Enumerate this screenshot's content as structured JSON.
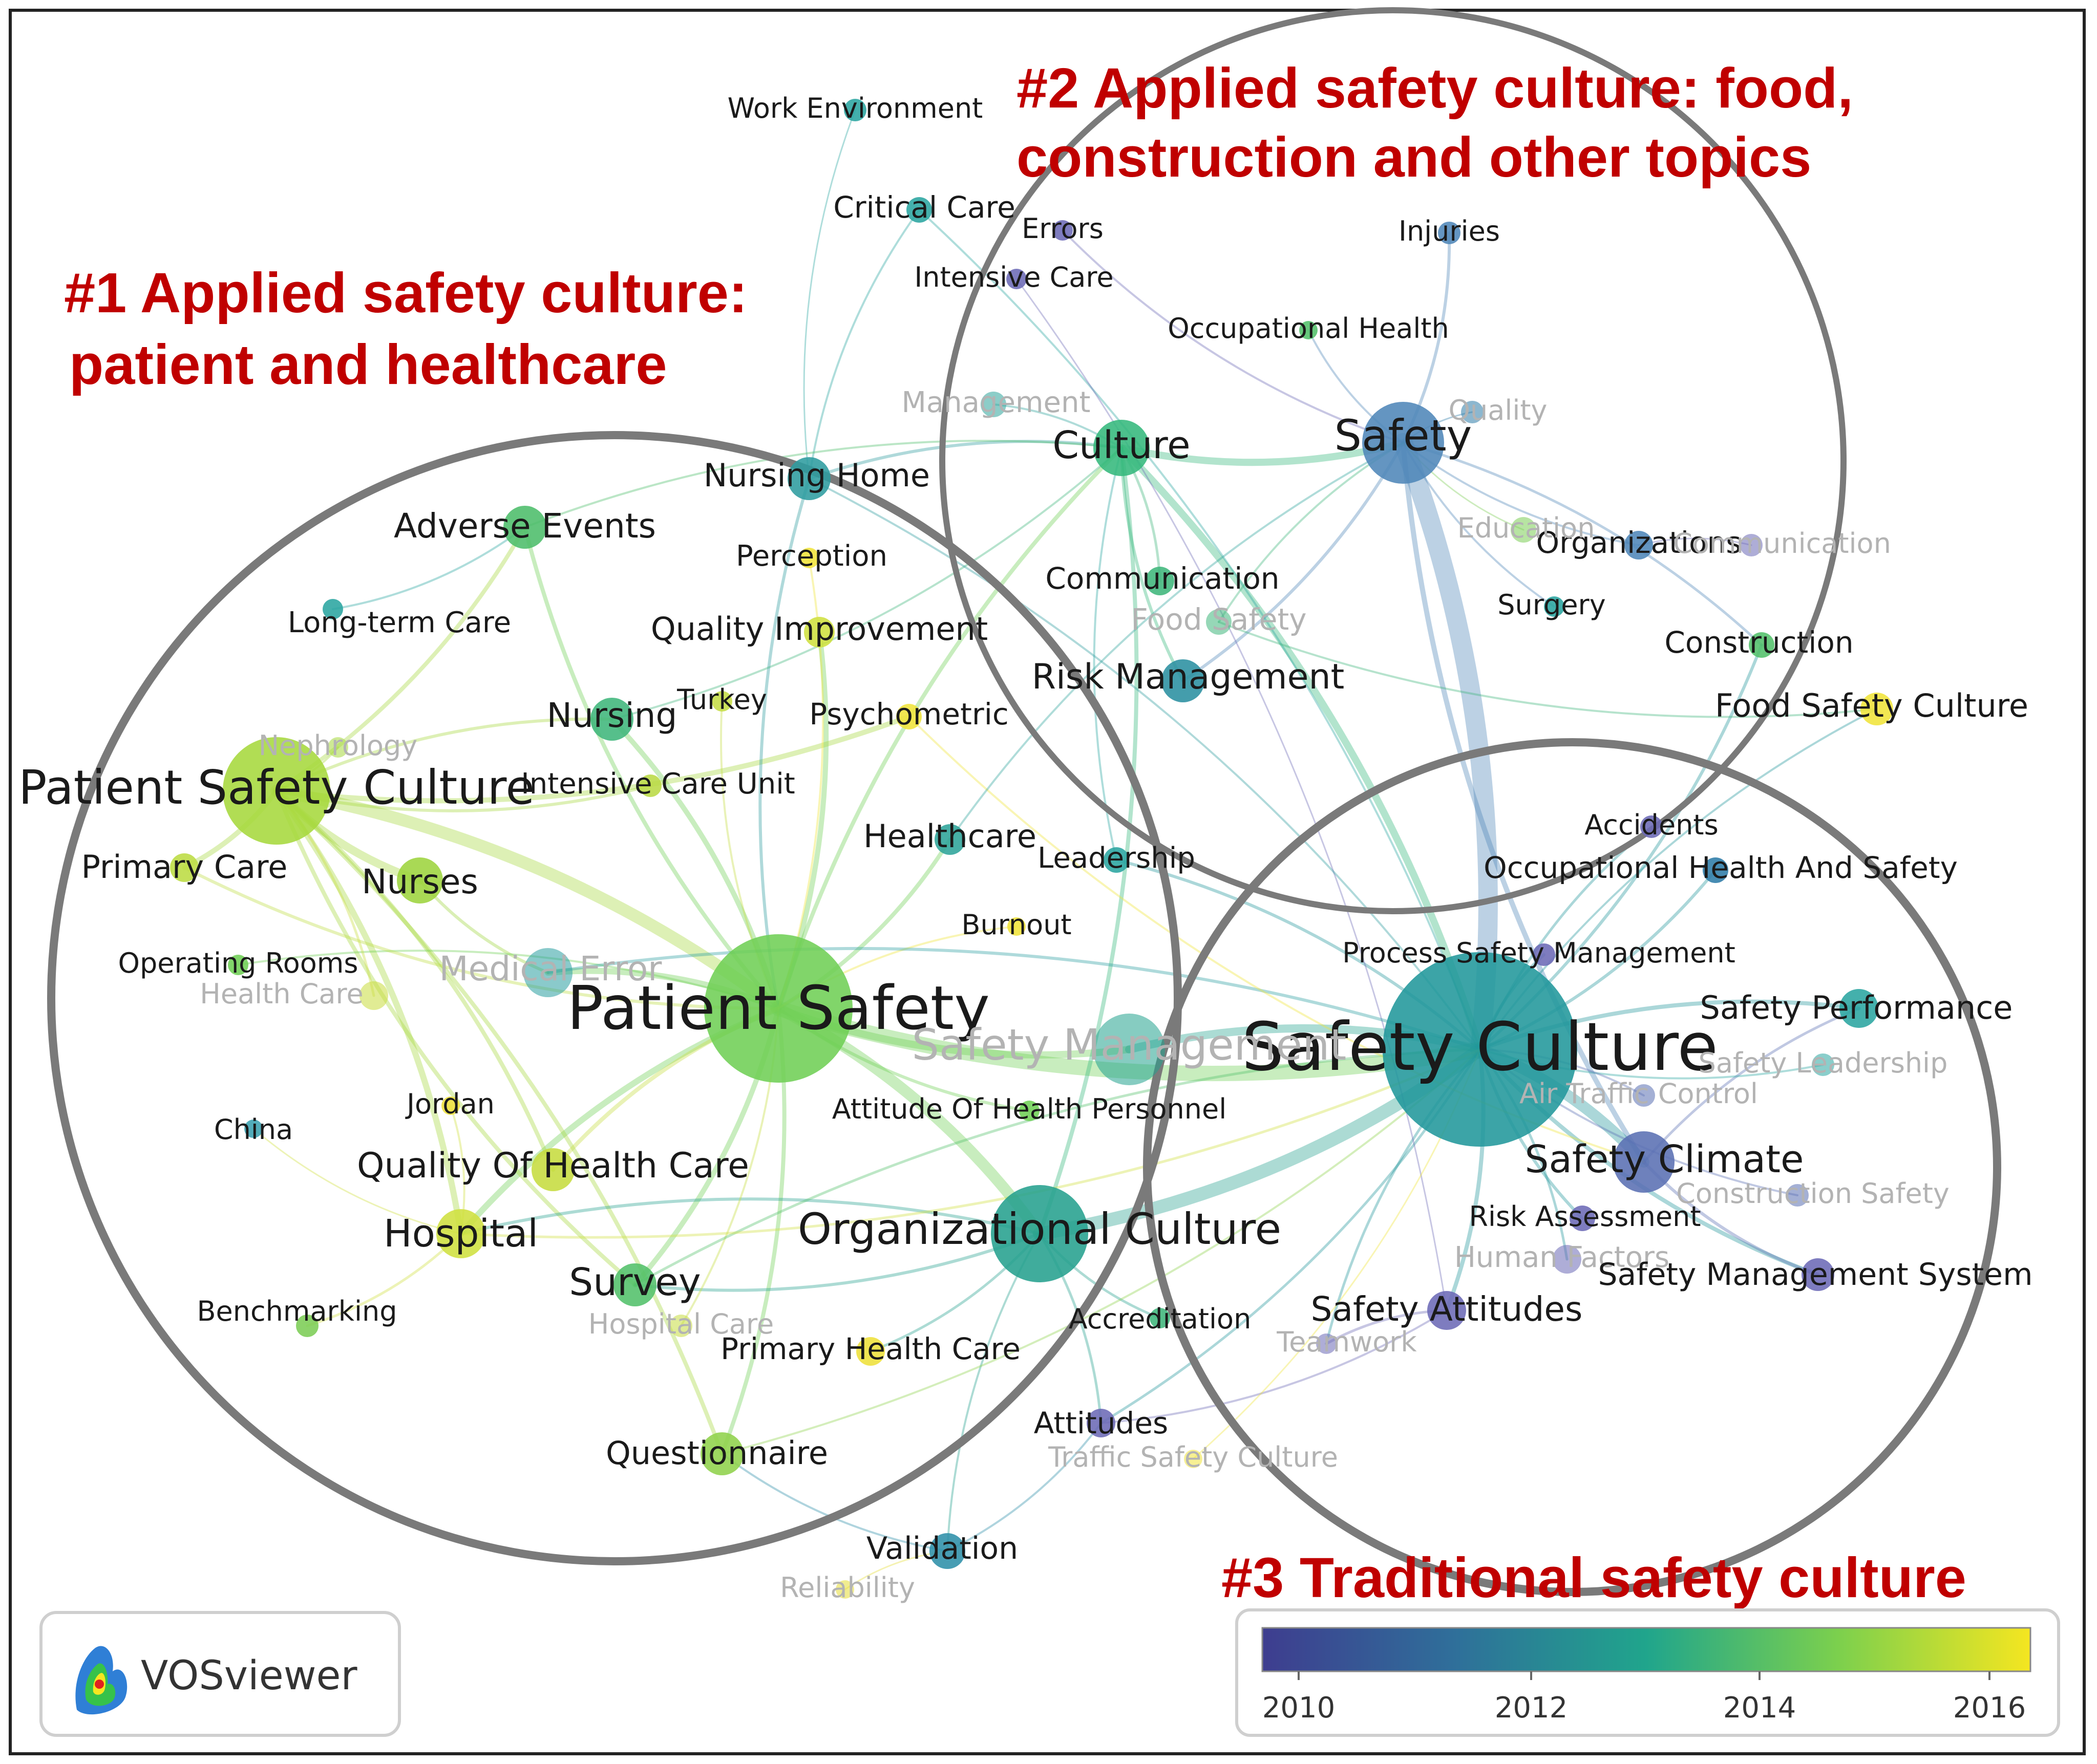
{
  "clusters": [
    {
      "id": "c1",
      "title_lines": [
        "#1 Applied safety culture:",
        "patient and healthcare"
      ]
    },
    {
      "id": "c2",
      "title_lines": [
        "#2 Applied safety culture: food,",
        "construction and other topics"
      ]
    },
    {
      "id": "c3",
      "title_lines": [
        "#3 Traditional safety culture"
      ]
    }
  ],
  "legend": {
    "ticks": [
      "2010",
      "2012",
      "2014",
      "2016"
    ],
    "colors": [
      "#3e3d8f",
      "#2f6f9a",
      "#20a58c",
      "#7cd04d",
      "#f5e620"
    ]
  },
  "brand": {
    "name": "VOSviewer"
  },
  "nodes": [
    {
      "id": "patient-safety",
      "label": "Patient Safety",
      "color": "#6fcf55",
      "faded": false
    },
    {
      "id": "safety-culture",
      "label": "Safety Culture",
      "color": "#21979b",
      "faded": false
    },
    {
      "id": "patient-safety-culture",
      "label": "Patient Safety Culture",
      "color": "#a6d83c",
      "faded": false
    },
    {
      "id": "organizational-culture",
      "label": "Organizational Culture",
      "color": "#25a18e",
      "faded": false
    },
    {
      "id": "safety",
      "label": "Safety",
      "color": "#4f86b8",
      "faded": false
    },
    {
      "id": "safety-climate",
      "label": "Safety Climate",
      "color": "#5a6fb3",
      "faded": false
    },
    {
      "id": "culture",
      "label": "Culture",
      "color": "#34b87c",
      "faded": false
    },
    {
      "id": "safety-management",
      "label": "Safety Management",
      "color": "#22a38e",
      "faded": true
    },
    {
      "id": "nursing-home",
      "label": "Nursing Home",
      "color": "#2e9c9f",
      "faded": false
    },
    {
      "id": "adverse-events",
      "label": "Adverse Events",
      "color": "#4cbd6a",
      "faded": false
    },
    {
      "id": "perception",
      "label": "Perception",
      "color": "#f0e43a",
      "faded": false
    },
    {
      "id": "long-term-care",
      "label": "Long-term Care",
      "color": "#2aa5a0",
      "faded": false
    },
    {
      "id": "quality-improvement",
      "label": "Quality Improvement",
      "color": "#cfe03f",
      "faded": false
    },
    {
      "id": "nursing",
      "label": "Nursing",
      "color": "#3fb67b",
      "faded": false
    },
    {
      "id": "turkey",
      "label": "Turkey",
      "color": "#c5dd45",
      "faded": false
    },
    {
      "id": "psychometric",
      "label": "Psychometric",
      "color": "#f0e43a",
      "faded": false
    },
    {
      "id": "nephrology",
      "label": "Nephrology",
      "color": "#a6d83c",
      "faded": true
    },
    {
      "id": "intensive-care-unit",
      "label": "Intensive Care Unit",
      "color": "#b9da44",
      "faded": false
    },
    {
      "id": "primary-care",
      "label": "Primary Care",
      "color": "#bcdc42",
      "faded": false
    },
    {
      "id": "nurses",
      "label": "Nurses",
      "color": "#9dd43d",
      "faded": false
    },
    {
      "id": "healthcare",
      "label": "Healthcare",
      "color": "#2ea49a",
      "faded": false
    },
    {
      "id": "leadership",
      "label": "Leadership",
      "color": "#2aa5a0",
      "faded": false
    },
    {
      "id": "burnout",
      "label": "Burnout",
      "color": "#f0e43a",
      "faded": false
    },
    {
      "id": "operating-rooms",
      "label": "Operating Rooms",
      "color": "#6fcf55",
      "faded": false
    },
    {
      "id": "medical-error",
      "label": "Medical Error",
      "color": "#2a9ea0",
      "faded": true
    },
    {
      "id": "health-care",
      "label": "Health Care",
      "color": "#c9dd3c",
      "faded": true
    },
    {
      "id": "jordan",
      "label": "Jordan",
      "color": "#eee03a",
      "faded": false
    },
    {
      "id": "china",
      "label": "China",
      "color": "#3aa0b0",
      "faded": false
    },
    {
      "id": "quality-of-health-care",
      "label": "Quality Of Health Care",
      "color": "#c6dc3f",
      "faded": false
    },
    {
      "id": "hospital",
      "label": "Hospital",
      "color": "#cfe03f",
      "faded": false
    },
    {
      "id": "benchmarking",
      "label": "Benchmarking",
      "color": "#7ccd55",
      "faded": false
    },
    {
      "id": "survey",
      "label": "Survey",
      "color": "#52c06a",
      "faded": false
    },
    {
      "id": "hospital-care",
      "label": "Hospital Care",
      "color": "#c6dc3f",
      "faded": true
    },
    {
      "id": "primary-health-care",
      "label": "Primary Health Care",
      "color": "#eee03a",
      "faded": false
    },
    {
      "id": "questionnaire",
      "label": "Questionnaire",
      "color": "#8fd14b",
      "faded": false
    },
    {
      "id": "accreditation",
      "label": "Accreditation",
      "color": "#3fb67b",
      "faded": false
    },
    {
      "id": "attitudes",
      "label": "Attitudes",
      "color": "#6c6ab6",
      "faded": false
    },
    {
      "id": "traffic-safety-culture",
      "label": "Traffic Safety Culture",
      "color": "#f0e43a",
      "faded": true
    },
    {
      "id": "validation",
      "label": "Validation",
      "color": "#2e8fa8",
      "faded": false
    },
    {
      "id": "reliability",
      "label": "Reliability",
      "color": "#e6dd35",
      "faded": true
    },
    {
      "id": "attitude-of-health-personnel",
      "label": "Attitude Of Health Personnel",
      "color": "#6fcf55",
      "faded": false
    },
    {
      "id": "work-environment",
      "label": "Work Environment",
      "color": "#2aa5a0",
      "faded": false
    },
    {
      "id": "critical-care",
      "label": "Critical Care",
      "color": "#2aa5a0",
      "faded": false
    },
    {
      "id": "errors",
      "label": "Errors",
      "color": "#6c6ab6",
      "faded": false
    },
    {
      "id": "intensive-care",
      "label": "Intensive Care",
      "color": "#6c6ab6",
      "faded": false
    },
    {
      "id": "injuries",
      "label": "Injuries",
      "color": "#4f86b8",
      "faded": false
    },
    {
      "id": "occupational-health",
      "label": "Occupational Health",
      "color": "#52c06a",
      "faded": false
    },
    {
      "id": "management",
      "label": "Management",
      "color": "#2ea49a",
      "faded": true
    },
    {
      "id": "communication",
      "label": "Communication",
      "color": "#3fb67b",
      "faded": false
    },
    {
      "id": "food-safety",
      "label": "Food Safety",
      "color": "#3fb67b",
      "faded": true
    },
    {
      "id": "risk-management",
      "label": "Risk Management",
      "color": "#2a8fa0",
      "faded": false
    },
    {
      "id": "surgery",
      "label": "Surgery",
      "color": "#2aa5a0",
      "faded": false
    },
    {
      "id": "organizations",
      "label": "Organizations",
      "color": "#4f86b8",
      "faded": false
    },
    {
      "id": "construction",
      "label": "Construction",
      "color": "#52c06a",
      "faded": false
    },
    {
      "id": "food-safety-culture",
      "label": "Food Safety Culture",
      "color": "#f0e43a",
      "faded": false
    },
    {
      "id": "accidents",
      "label": "Accidents",
      "color": "#6c6ab6",
      "faded": false
    },
    {
      "id": "occupational-health-and-safety",
      "label": "Occupational Health And Safety",
      "color": "#2e7ca8",
      "faded": false
    },
    {
      "id": "process-safety-management",
      "label": "Process Safety Management",
      "color": "#6c6ab6",
      "faded": false
    },
    {
      "id": "safety-performance",
      "label": "Safety Performance",
      "color": "#2aa5a0",
      "faded": false
    },
    {
      "id": "safety-leadership",
      "label": "Safety Leadership",
      "color": "#2aa5a0",
      "faded": true
    },
    {
      "id": "air-traffic-control",
      "label": "Air Traffic Control",
      "color": "#5a6fb3",
      "faded": true
    },
    {
      "id": "risk-assessment",
      "label": "Risk Assessment",
      "color": "#6c6ab6",
      "faded": false
    },
    {
      "id": "human-factors",
      "label": "Human Factors",
      "color": "#6c6ab6",
      "faded": true
    },
    {
      "id": "construction-safety",
      "label": "Construction Safety",
      "color": "#5a6fb3",
      "faded": true
    },
    {
      "id": "safety-management-system",
      "label": "Safety Management System",
      "color": "#6c6ab6",
      "faded": false
    },
    {
      "id": "safety-attitudes",
      "label": "Safety Attitudes",
      "color": "#6c6ab6",
      "faded": false
    },
    {
      "id": "teamwork",
      "label": "Teamwork",
      "color": "#6c6ab6",
      "faded": true
    },
    {
      "id": "quality",
      "label": "Quality",
      "color": "#2e7ca8",
      "faded": true
    },
    {
      "id": "education",
      "label": "Education",
      "color": "#7ccd55",
      "faded": true
    },
    {
      "id": "organizational-communication",
      "label": "Communication",
      "color": "#6c6ab6",
      "faded": true
    }
  ]
}
